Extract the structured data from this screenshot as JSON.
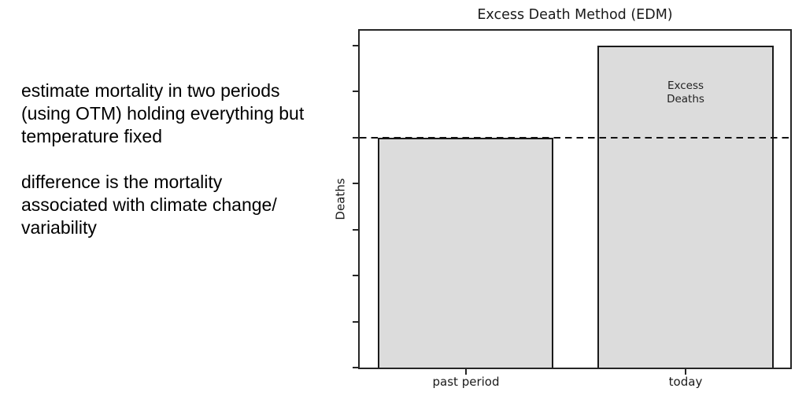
{
  "notes": {
    "para1_lines": [
      "estimate mortality in two periods",
      "(using OTM) holding everything but",
      "temperature fixed"
    ],
    "para2_lines": [
      "difference is the mortality",
      "associated with climate change/",
      "variability"
    ]
  },
  "chart_data": {
    "type": "bar",
    "title": "Excess Death Method (EDM)",
    "categories": [
      "past period",
      "today"
    ],
    "values": [
      5,
      7
    ],
    "ylabel": "Deaths",
    "xlabel": "",
    "ylim": [
      0,
      7.32
    ],
    "yticks": [
      0,
      1,
      2,
      3,
      4,
      5,
      6,
      7
    ],
    "ytick_labels": [],
    "grid": false,
    "legend": false,
    "bar_fill_color": "#dcdcdc",
    "bar_edge_color": "#1a1a1a",
    "reference_line": {
      "y": 5,
      "style": "dashed",
      "color": "#111111"
    },
    "annotation": {
      "lines": [
        "Excess",
        "Deaths"
      ],
      "location": "inside-today-bar-above-reference-line"
    }
  }
}
